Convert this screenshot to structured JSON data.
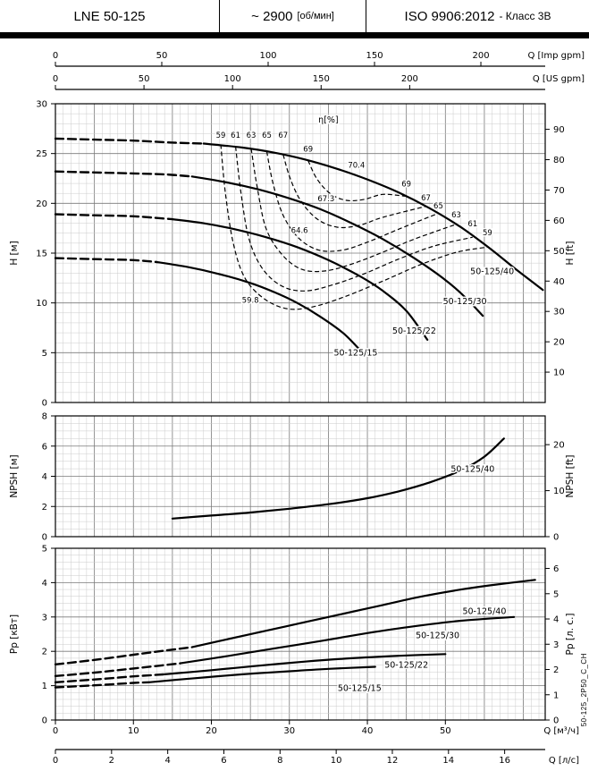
{
  "header": {
    "model": "LNE 50-125",
    "speed_value": "~ 2900",
    "speed_unit": "[об/мин]",
    "standard": "ISO 9906:2012",
    "standard_class": "- Класс 3В"
  },
  "side_code": "50-125_2P50_C_CH",
  "chart_data": [
    {
      "type": "line",
      "id": "head",
      "x": {
        "unit": "м³/ч",
        "max": 62.8,
        "minor": 1,
        "major": 5
      },
      "y": {
        "label": "H [м]",
        "min": 0,
        "max": 30,
        "ticks": [
          0,
          5,
          10,
          15,
          20,
          25,
          30
        ],
        "minor": 1,
        "major": 5
      },
      "y_right": {
        "label": "H [ft]",
        "ticks": [
          10,
          20,
          30,
          40,
          50,
          60,
          70,
          80,
          90
        ],
        "unit_in_m": 0.3048
      },
      "top_axes": [
        {
          "label": "Q [Imp gpm]",
          "ticks": [
            0,
            50,
            100,
            150,
            200
          ],
          "to_m3h": 0.27276
        },
        {
          "label": "Q [US gpm]",
          "ticks": [
            0,
            50,
            100,
            150,
            200
          ],
          "to_m3h": 0.22712
        }
      ],
      "series": [
        {
          "name": "50-125/40",
          "dash_until": 19,
          "label_at": [
            56,
            12.9
          ],
          "points": [
            [
              0,
              26.5
            ],
            [
              5,
              26.4
            ],
            [
              10,
              26.3
            ],
            [
              15,
              26.1
            ],
            [
              19,
              26.0
            ],
            [
              24,
              25.6
            ],
            [
              28,
              25.1
            ],
            [
              32,
              24.4
            ],
            [
              36,
              23.5
            ],
            [
              40,
              22.4
            ],
            [
              44,
              21.1
            ],
            [
              48,
              19.5
            ],
            [
              52,
              17.6
            ],
            [
              56,
              15.3
            ],
            [
              59,
              13.4
            ],
            [
              62.5,
              11.3
            ]
          ]
        },
        {
          "name": "50-125/30",
          "dash_until": 17.5,
          "label_at": [
            52.5,
            9.9
          ],
          "points": [
            [
              0,
              23.2
            ],
            [
              5,
              23.1
            ],
            [
              10,
              23.0
            ],
            [
              14,
              22.9
            ],
            [
              17.5,
              22.7
            ],
            [
              22,
              22.1
            ],
            [
              26,
              21.4
            ],
            [
              30,
              20.5
            ],
            [
              34,
              19.4
            ],
            [
              38,
              18.0
            ],
            [
              42,
              16.4
            ],
            [
              46,
              14.5
            ],
            [
              50,
              12.3
            ],
            [
              52.5,
              10.6
            ],
            [
              54.8,
              8.7
            ]
          ]
        },
        {
          "name": "50-125/22",
          "dash_until": 15,
          "label_at": [
            46,
            6.9
          ],
          "points": [
            [
              0,
              18.9
            ],
            [
              5,
              18.8
            ],
            [
              10,
              18.7
            ],
            [
              15,
              18.4
            ],
            [
              19,
              18.0
            ],
            [
              23,
              17.4
            ],
            [
              27,
              16.6
            ],
            [
              31,
              15.6
            ],
            [
              35,
              14.3
            ],
            [
              39,
              12.7
            ],
            [
              42,
              11.2
            ],
            [
              45,
              9.2
            ],
            [
              47.7,
              6.3
            ]
          ]
        },
        {
          "name": "50-125/15",
          "dash_until": 13,
          "label_at": [
            38.5,
            4.7
          ],
          "points": [
            [
              0,
              14.5
            ],
            [
              5,
              14.4
            ],
            [
              10,
              14.3
            ],
            [
              13,
              14.1
            ],
            [
              17,
              13.6
            ],
            [
              21,
              12.9
            ],
            [
              25,
              12.0
            ],
            [
              28,
              11.1
            ],
            [
              31,
              10.0
            ],
            [
              34,
              8.6
            ],
            [
              37,
              6.9
            ],
            [
              39.6,
              4.8
            ]
          ]
        }
      ],
      "efficiency": {
        "title": "η[%]",
        "title_at": [
          35,
          28.1
        ],
        "contours": [
          {
            "value": "59",
            "left_label_at": [
              21.2,
              26.6
            ],
            "right_label_at": [
              55.4,
              16.8
            ],
            "points": [
              [
                21.2,
                25.9
              ],
              [
                21.8,
                21
              ],
              [
                22.8,
                16
              ],
              [
                24.3,
                12.5
              ],
              [
                26.8,
                10.4
              ],
              [
                29.8,
                9.4
              ],
              [
                33,
                9.6
              ],
              [
                37,
                10.6
              ],
              [
                42,
                12.2
              ],
              [
                47,
                13.9
              ],
              [
                51.5,
                15.1
              ],
              [
                55.4,
                15.6
              ]
            ]
          },
          {
            "value": "61",
            "left_label_at": [
              23.1,
              26.6
            ],
            "right_label_at": [
              53.5,
              17.7
            ],
            "points": [
              [
                23.1,
                25.7
              ],
              [
                23.8,
                21
              ],
              [
                24.8,
                16.5
              ],
              [
                26.5,
                13.5
              ],
              [
                29,
                11.7
              ],
              [
                32,
                11.2
              ],
              [
                35.5,
                11.8
              ],
              [
                39.5,
                12.9
              ],
              [
                44,
                14.4
              ],
              [
                48.5,
                15.7
              ],
              [
                53.5,
                16.6
              ]
            ]
          },
          {
            "value": "63",
            "left_label_at": [
              25.1,
              26.6
            ],
            "right_label_at": [
              51.4,
              18.6
            ],
            "points": [
              [
                25.1,
                25.5
              ],
              [
                25.9,
                21.5
              ],
              [
                27,
                17.5
              ],
              [
                29,
                14.9
              ],
              [
                31.5,
                13.4
              ],
              [
                34.5,
                13.2
              ],
              [
                38,
                13.9
              ],
              [
                42,
                15.1
              ],
              [
                46,
                16.4
              ],
              [
                51.4,
                17.9
              ]
            ]
          },
          {
            "value": "65",
            "left_label_at": [
              27.1,
              26.6
            ],
            "right_label_at": [
              49.1,
              19.5
            ],
            "points": [
              [
                27.1,
                25.2
              ],
              [
                27.9,
                22
              ],
              [
                29.2,
                18.8
              ],
              [
                31.2,
                16.5
              ],
              [
                33.8,
                15.3
              ],
              [
                36.8,
                15.3
              ],
              [
                40,
                16.1
              ],
              [
                44,
                17.4
              ],
              [
                49.1,
                19.0
              ]
            ]
          },
          {
            "value": "67",
            "left_label_at": [
              29.2,
              26.6
            ],
            "right_label_at": [
              47.5,
              20.3
            ],
            "points": [
              [
                29.2,
                24.9
              ],
              [
                30.1,
                22.5
              ],
              [
                31.5,
                20.2
              ],
              [
                33.6,
                18.4
              ],
              [
                36.2,
                17.6
              ],
              [
                39,
                17.8
              ],
              [
                42,
                18.6
              ],
              [
                47.5,
                19.7
              ]
            ]
          },
          {
            "value": "69",
            "left_label_at": [
              32.4,
              25.2
            ],
            "right_label_at": [
              45,
              21.7
            ],
            "points": [
              [
                32.4,
                24.3
              ],
              [
                33.5,
                22.5
              ],
              [
                35.2,
                21.0
              ],
              [
                37.3,
                20.3
              ],
              [
                39.6,
                20.4
              ],
              [
                42,
                20.9
              ],
              [
                45,
                20.7
              ]
            ]
          }
        ],
        "bep_labels": [
          {
            "text": "70.4",
            "at": [
              38.6,
              23.6
            ]
          },
          {
            "text": "67.3",
            "at": [
              34.7,
              20.2
            ]
          },
          {
            "text": "64.6",
            "at": [
              31.3,
              17.0
            ]
          },
          {
            "text": "59.8",
            "at": [
              25.0,
              10.0
            ]
          }
        ]
      }
    },
    {
      "type": "line",
      "id": "npsh",
      "y": {
        "label": "NPSH [м]",
        "min": 0,
        "max": 8,
        "ticks": [
          0,
          2,
          4,
          6,
          8
        ],
        "minor": 0.5,
        "major": 2
      },
      "y_right": {
        "label": "NPSH [ft]",
        "ticks": [
          0,
          10,
          20
        ],
        "unit_in_m": 0.3048
      },
      "series": [
        {
          "name": "50-125/40",
          "dash_until": 0,
          "label_at": [
            53.5,
            4.3
          ],
          "points": [
            [
              15,
              1.2
            ],
            [
              20,
              1.4
            ],
            [
              25,
              1.6
            ],
            [
              30,
              1.85
            ],
            [
              35,
              2.15
            ],
            [
              40,
              2.55
            ],
            [
              44,
              3.0
            ],
            [
              48,
              3.6
            ],
            [
              52,
              4.4
            ],
            [
              55,
              5.3
            ],
            [
              57.5,
              6.5
            ]
          ]
        }
      ]
    },
    {
      "type": "line",
      "id": "power",
      "y": {
        "label": "Pp [кВт]",
        "min": 0,
        "max": 5,
        "ticks": [
          0,
          1,
          2,
          3,
          4,
          5
        ],
        "minor": 0.2,
        "major": 1
      },
      "y_right": {
        "label": "Pp [л. с.]",
        "ticks": [
          0,
          1,
          2,
          3,
          4,
          5,
          6
        ],
        "unit_in_kw": 0.7355
      },
      "bottom_axes": [
        {
          "label": "Q [м³/ч]",
          "ticks": [
            0,
            10,
            20,
            30,
            40,
            50
          ],
          "to_m3h": 1
        },
        {
          "label": "Q [л/с]",
          "ticks": [
            0,
            2,
            4,
            6,
            8,
            10,
            12,
            14,
            16
          ],
          "to_m3h": 3.6
        }
      ],
      "series": [
        {
          "name": "50-125/40",
          "dash_until": 17.5,
          "label_at": [
            55,
            3.08
          ],
          "points": [
            [
              0,
              1.62
            ],
            [
              5,
              1.75
            ],
            [
              10,
              1.9
            ],
            [
              14,
              2.02
            ],
            [
              17.5,
              2.12
            ],
            [
              22,
              2.35
            ],
            [
              27,
              2.6
            ],
            [
              32,
              2.85
            ],
            [
              37,
              3.1
            ],
            [
              42,
              3.35
            ],
            [
              47,
              3.6
            ],
            [
              52,
              3.8
            ],
            [
              56,
              3.93
            ],
            [
              61.5,
              4.08
            ]
          ]
        },
        {
          "name": "50-125/30",
          "dash_until": 16,
          "label_at": [
            49,
            2.38
          ],
          "points": [
            [
              0,
              1.28
            ],
            [
              5,
              1.38
            ],
            [
              10,
              1.5
            ],
            [
              16,
              1.65
            ],
            [
              22,
              1.86
            ],
            [
              28,
              2.08
            ],
            [
              34,
              2.3
            ],
            [
              40,
              2.53
            ],
            [
              46,
              2.73
            ],
            [
              52,
              2.89
            ],
            [
              58.8,
              3.0
            ]
          ]
        },
        {
          "name": "50-125/22",
          "dash_until": 14,
          "label_at": [
            45,
            1.52
          ],
          "points": [
            [
              0,
              1.1
            ],
            [
              5,
              1.18
            ],
            [
              10,
              1.27
            ],
            [
              14,
              1.33
            ],
            [
              20,
              1.45
            ],
            [
              26,
              1.58
            ],
            [
              32,
              1.7
            ],
            [
              38,
              1.8
            ],
            [
              44,
              1.87
            ],
            [
              50,
              1.92
            ]
          ]
        },
        {
          "name": "50-125/15",
          "dash_until": 12,
          "label_at": [
            39,
            0.84
          ],
          "points": [
            [
              0,
              0.95
            ],
            [
              5,
              1.01
            ],
            [
              10,
              1.08
            ],
            [
              12,
              1.1
            ],
            [
              18,
              1.22
            ],
            [
              24,
              1.33
            ],
            [
              30,
              1.42
            ],
            [
              35,
              1.49
            ],
            [
              41,
              1.55
            ]
          ]
        }
      ]
    }
  ]
}
